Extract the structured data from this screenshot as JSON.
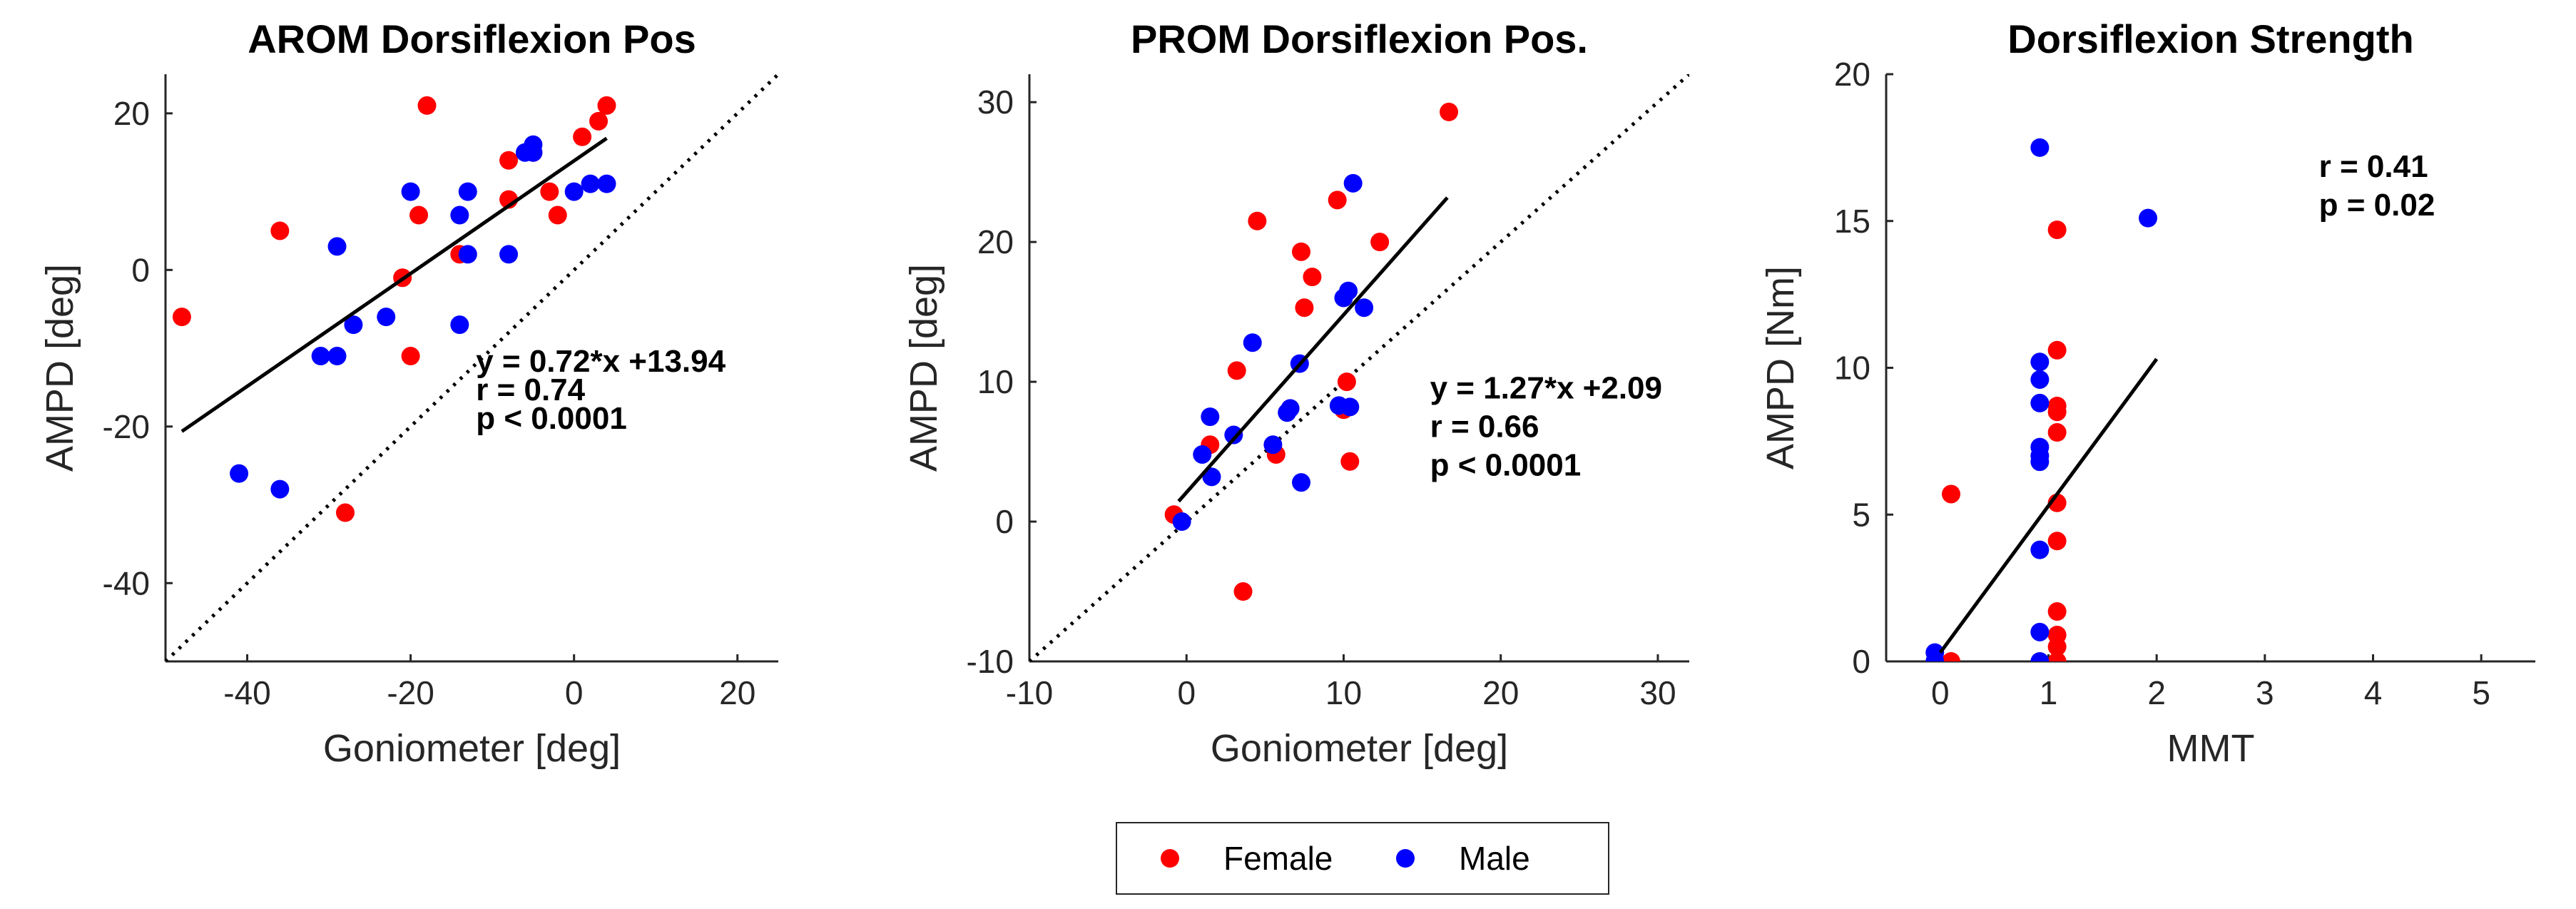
{
  "legend": {
    "entries": [
      {
        "label": "Female",
        "color": "#ff0000"
      },
      {
        "label": "Male",
        "color": "#0000ff"
      }
    ]
  },
  "chart_data": [
    {
      "type": "scatter",
      "title": "AROM Dorsiflexion Pos",
      "xlabel": "Goniometer [deg]",
      "ylabel": "AMPD [deg]",
      "xlim": [
        -50,
        25
      ],
      "ylim": [
        -50,
        25
      ],
      "xticks": [
        -40,
        -20,
        0,
        20
      ],
      "yticks": [
        -40,
        -20,
        0,
        20
      ],
      "identity_line": true,
      "fit": {
        "slope": 0.72,
        "intercept": 13.94,
        "x_range": [
          -48,
          4
        ]
      },
      "annotation": [
        "y = 0.72*x +13.94",
        "r = 0.74",
        "p < 0.0001"
      ],
      "annotation_anchor": {
        "x": -12,
        "y": -13
      },
      "series": [
        {
          "name": "Female",
          "color": "#ff0000",
          "points": [
            [
              -48,
              -6
            ],
            [
              -36,
              5
            ],
            [
              -28,
              -31
            ],
            [
              -21,
              -1
            ],
            [
              -19,
              7
            ],
            [
              -18,
              21
            ],
            [
              -20,
              -11
            ],
            [
              -14,
              2
            ],
            [
              -8,
              14
            ],
            [
              -8,
              9
            ],
            [
              -3,
              10
            ],
            [
              -2,
              7
            ],
            [
              1,
              17
            ],
            [
              3,
              19
            ],
            [
              4,
              21
            ],
            [
              -5,
              15
            ]
          ]
        },
        {
          "name": "Male",
          "color": "#0000ff",
          "points": [
            [
              -41,
              -26
            ],
            [
              -36,
              -28
            ],
            [
              -31,
              -11
            ],
            [
              -29,
              3
            ],
            [
              -29,
              -11
            ],
            [
              -27,
              -7
            ],
            [
              -23,
              -6
            ],
            [
              -20,
              10
            ],
            [
              -14,
              7
            ],
            [
              -13,
              2
            ],
            [
              -13,
              10
            ],
            [
              -14,
              -7
            ],
            [
              -8,
              2
            ],
            [
              -6,
              15
            ],
            [
              -5,
              16
            ],
            [
              -5,
              15
            ],
            [
              0,
              10
            ],
            [
              2,
              11
            ],
            [
              4,
              11
            ]
          ]
        }
      ]
    },
    {
      "type": "scatter",
      "title": "PROM Dorsiflexion Pos.",
      "xlabel": "Goniometer [deg]",
      "ylabel": "AMPD [deg]",
      "xlim": [
        -10,
        32
      ],
      "ylim": [
        -10,
        32
      ],
      "xticks": [
        -10,
        0,
        10,
        20,
        30
      ],
      "yticks": [
        -10,
        0,
        10,
        20,
        30
      ],
      "identity_line": true,
      "fit": {
        "slope": 1.27,
        "intercept": 2.09,
        "x_range": [
          -0.5,
          16.6
        ]
      },
      "annotation": [
        "y = 1.27*x +2.09",
        "r = 0.66",
        "p < 0.0001"
      ],
      "annotation_anchor": {
        "x": 15.5,
        "y": 8.8
      },
      "series": [
        {
          "name": "Female",
          "color": "#ff0000",
          "points": [
            [
              -0.8,
              0.5
            ],
            [
              1.5,
              5.5
            ],
            [
              3.2,
              10.8
            ],
            [
              3.6,
              -5
            ],
            [
              4.5,
              21.5
            ],
            [
              5.7,
              4.8
            ],
            [
              7.3,
              19.3
            ],
            [
              7.5,
              15.3
            ],
            [
              8.0,
              17.5
            ],
            [
              9.6,
              23
            ],
            [
              10.0,
              8
            ],
            [
              10.2,
              10
            ],
            [
              10.4,
              4.3
            ],
            [
              12.3,
              20
            ],
            [
              16.7,
              29.3
            ]
          ]
        },
        {
          "name": "Male",
          "color": "#0000ff",
          "points": [
            [
              -0.3,
              0
            ],
            [
              1.0,
              4.8
            ],
            [
              1.5,
              7.5
            ],
            [
              1.6,
              3.2
            ],
            [
              3.0,
              6.2
            ],
            [
              4.2,
              12.8
            ],
            [
              5.5,
              5.5
            ],
            [
              6.4,
              7.8
            ],
            [
              6.6,
              8.1
            ],
            [
              7.2,
              11.3
            ],
            [
              7.3,
              2.8
            ],
            [
              9.7,
              8.3
            ],
            [
              10.0,
              16
            ],
            [
              10.3,
              16.5
            ],
            [
              10.4,
              8.2
            ],
            [
              10.6,
              24.2
            ],
            [
              11.3,
              15.3
            ]
          ]
        }
      ]
    },
    {
      "type": "scatter",
      "title": "Dorsiflexion Strength",
      "xlabel": "MMT",
      "ylabel": "AMPD [Nm]",
      "xlim": [
        -0.5,
        5.5
      ],
      "ylim": [
        0,
        20
      ],
      "xticks": [
        0,
        1,
        2,
        3,
        4,
        5
      ],
      "yticks": [
        0,
        5,
        10,
        15,
        20
      ],
      "identity_line": false,
      "fit": {
        "slope": 5.0,
        "intercept": 0.3,
        "x_range": [
          0,
          2
        ]
      },
      "annotation": [
        "r = 0.41",
        "p = 0.02"
      ],
      "annotation_anchor": {
        "x": 3.5,
        "y": 16.5
      },
      "series": [
        {
          "name": "Female",
          "color": "#ff0000",
          "points": [
            [
              0.1,
              5.7
            ],
            [
              0.1,
              0
            ],
            [
              1.08,
              14.7
            ],
            [
              1.08,
              10.6
            ],
            [
              1.08,
              8.7
            ],
            [
              1.08,
              8.5
            ],
            [
              1.08,
              7.8
            ],
            [
              1.08,
              5.4
            ],
            [
              1.08,
              4.1
            ],
            [
              1.08,
              1.7
            ],
            [
              1.08,
              0.9
            ],
            [
              1.08,
              0.5
            ],
            [
              1.08,
              0
            ]
          ]
        },
        {
          "name": "Male",
          "color": "#0000ff",
          "points": [
            [
              -0.05,
              0.3
            ],
            [
              -0.05,
              0
            ],
            [
              0.92,
              17.5
            ],
            [
              0.92,
              10.2
            ],
            [
              0.92,
              9.6
            ],
            [
              0.92,
              8.8
            ],
            [
              0.92,
              7.3
            ],
            [
              0.92,
              7.0
            ],
            [
              0.92,
              6.8
            ],
            [
              0.92,
              3.8
            ],
            [
              0.92,
              1.0
            ],
            [
              0.92,
              0
            ],
            [
              1.92,
              15.1
            ]
          ]
        }
      ]
    }
  ]
}
